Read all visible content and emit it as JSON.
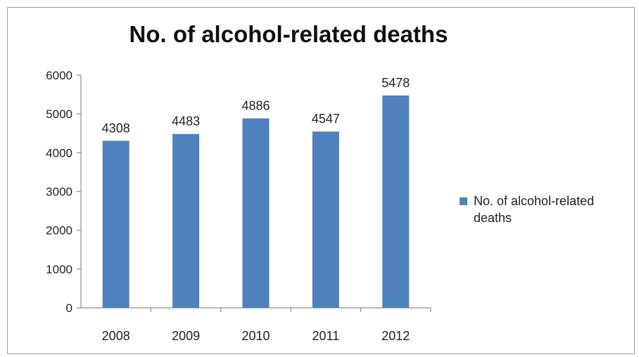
{
  "chart_data": {
    "type": "bar",
    "title": "No. of alcohol-related deaths",
    "categories": [
      "2008",
      "2009",
      "2010",
      "2011",
      "2012"
    ],
    "series": [
      {
        "name": "No. of alcohol-related deaths",
        "values": [
          4308,
          4483,
          4886,
          4547,
          5478
        ]
      }
    ],
    "yticks": [
      "0",
      "1000",
      "2000",
      "3000",
      "4000",
      "5000",
      "6000"
    ],
    "ylim": [
      0,
      6000
    ],
    "xlabel": "",
    "ylabel": "",
    "grid": false,
    "legend_position": "right",
    "colors": {
      "bar": "#4f81bd",
      "axis": "#8c8c8c",
      "text": "#222222"
    }
  }
}
